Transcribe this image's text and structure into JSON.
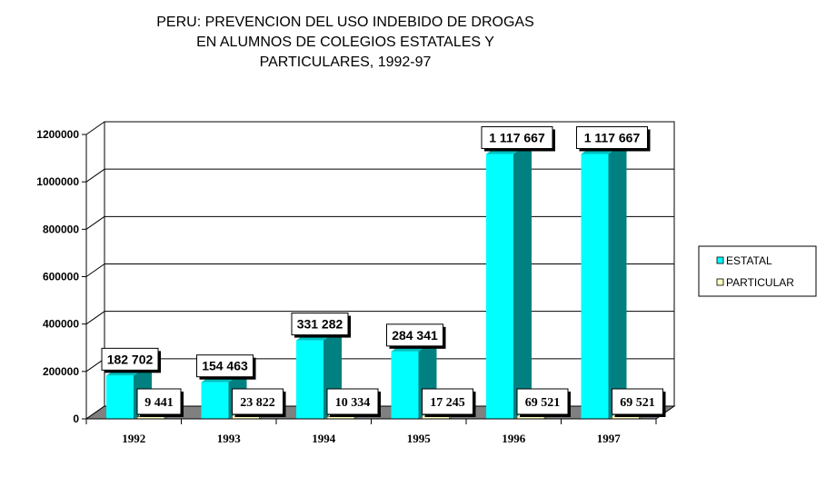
{
  "chart_data": {
    "type": "bar",
    "title": "PERU: PREVENCION DEL USO INDEBIDO DE DROGAS EN ALUMNOS DE COLEGIOS ESTATALES Y PARTICULARES, 1992-97",
    "title_lines": [
      "PERU: PREVENCION DEL USO INDEBIDO DE DROGAS",
      "EN ALUMNOS DE COLEGIOS ESTATALES Y",
      "PARTICULARES, 1992-97"
    ],
    "categories": [
      "1992",
      "1993",
      "1994",
      "1995",
      "1996",
      "1997"
    ],
    "series": [
      {
        "name": "ESTATAL",
        "color": "#00ffff",
        "side_color": "#008080",
        "values": [
          182702,
          154463,
          331282,
          284341,
          1117667,
          1117667
        ],
        "labels": [
          "182 702",
          "154 463",
          "331 282",
          "284 341",
          "1 117 667",
          "1 117 667"
        ]
      },
      {
        "name": "PARTICULAR",
        "color": "#ffffc0",
        "side_color": "#c0c080",
        "values": [
          9441,
          23822,
          10334,
          17245,
          69521,
          69521
        ],
        "labels": [
          "9 441",
          "23 822",
          "10 334",
          "17 245",
          "69 521",
          "69 521"
        ]
      }
    ],
    "ylim": [
      0,
      1200000
    ],
    "yticks": [
      "0",
      "200000",
      "400000",
      "600000",
      "800000",
      "1000000",
      "1200000"
    ],
    "grid": true,
    "legend_position": "right"
  }
}
